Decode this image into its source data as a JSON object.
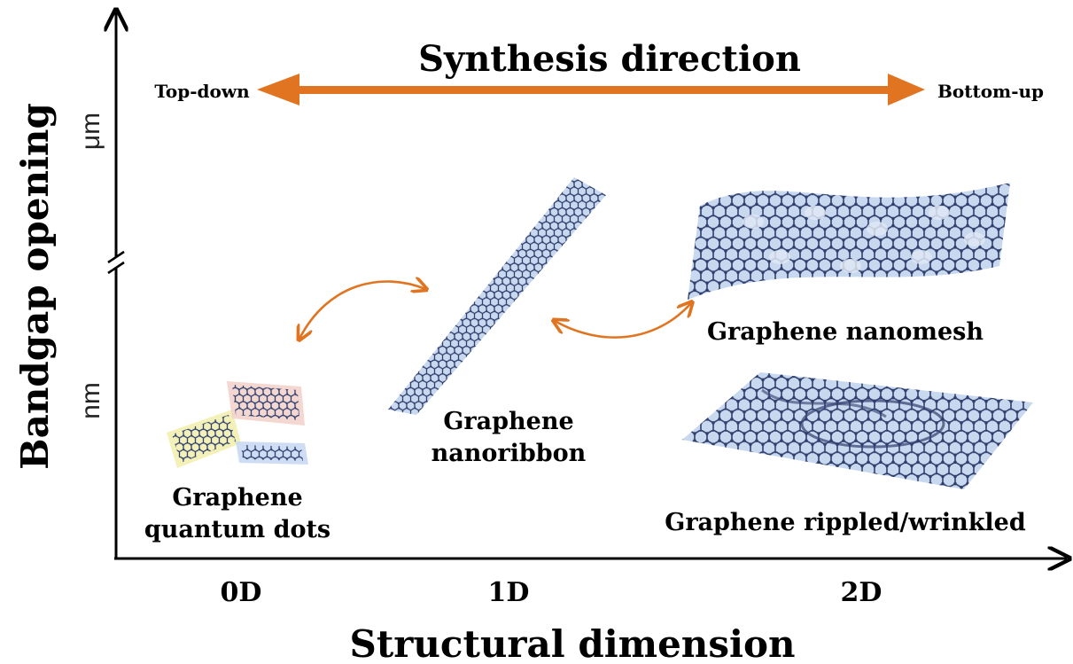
{
  "synthesis": {
    "title": "Synthesis direction",
    "left_label": "Top-down",
    "right_label": "Bottom-up",
    "arrow_color": "#e07420"
  },
  "axes": {
    "y_title": "Bandgap opening",
    "x_title": "Structural dimension",
    "y_upper_unit": "μm",
    "y_lower_unit": "nm",
    "x_ticks": [
      "0D",
      "1D",
      "2D"
    ]
  },
  "materials": {
    "qd_line1": "Graphene",
    "qd_line2": "quantum dots",
    "nr_line1": "Graphene",
    "nr_line2": "nanoribbon",
    "nanomesh": "Graphene nanomesh",
    "rippled": "Graphene rippled/wrinkled"
  },
  "colors": {
    "lattice": "#2f3f6e",
    "lattice_fill": "#c8d8ee",
    "accent": "#e07420",
    "qd_yellow": "#f2efb0",
    "qd_pink": "#f3d3cc",
    "qd_blue": "#c9d9f2"
  }
}
